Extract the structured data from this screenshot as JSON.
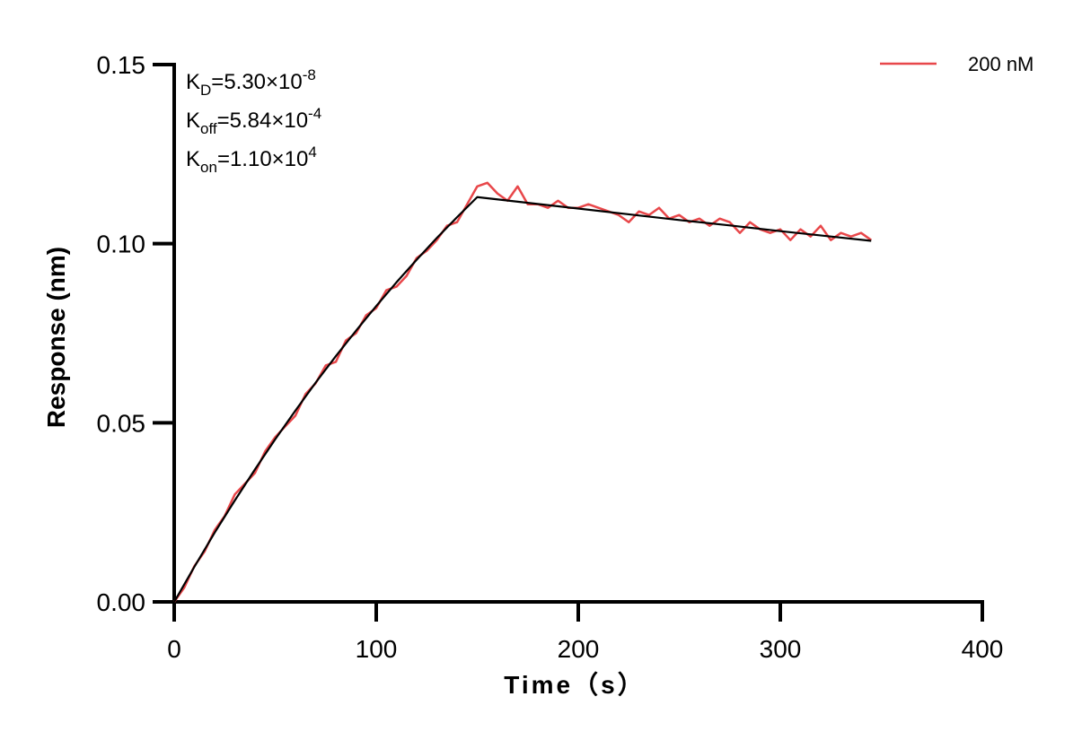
{
  "chart_data": {
    "type": "line",
    "y_label": "Response (nm)",
    "x_label": "Time（s）",
    "annotations": [
      {
        "base": "K",
        "sub": "D",
        "text": "=5.30×10",
        "sup": "-8"
      },
      {
        "base": "K",
        "sub": "off",
        "text": "=5.84×10",
        "sup": "-4"
      },
      {
        "base": "K",
        "sub": "on",
        "text": "=1.10×10",
        "sup": "4"
      }
    ],
    "xlim": [
      0,
      400
    ],
    "xticks": [
      0,
      100,
      200,
      300,
      400
    ],
    "ylim": [
      0,
      0.15
    ],
    "yticks": [
      {
        "value": 0,
        "label": "0.00"
      },
      {
        "value": 0.05,
        "label": "0.05"
      },
      {
        "value": 0.1,
        "label": "0.10"
      },
      {
        "value": 0.15,
        "label": "0.15"
      }
    ],
    "grid": false,
    "legend": "top-right",
    "series": [
      {
        "name": "200 nM",
        "color": "#e8474a",
        "x": [
          0,
          5,
          10,
          15,
          20,
          25,
          30,
          35,
          40,
          45,
          50,
          55,
          60,
          65,
          70,
          75,
          80,
          85,
          90,
          95,
          100,
          105,
          110,
          115,
          120,
          125,
          130,
          135,
          140,
          145,
          150,
          155,
          160,
          165,
          170,
          175,
          180,
          185,
          190,
          195,
          200,
          205,
          210,
          215,
          220,
          225,
          230,
          235,
          240,
          245,
          250,
          255,
          260,
          265,
          270,
          275,
          280,
          285,
          290,
          295,
          300,
          305,
          310,
          315,
          320,
          325,
          330,
          335,
          340,
          345
        ],
        "values": [
          0.0,
          0.004,
          0.01,
          0.014,
          0.02,
          0.024,
          0.03,
          0.033,
          0.036,
          0.042,
          0.046,
          0.049,
          0.052,
          0.058,
          0.061,
          0.066,
          0.067,
          0.073,
          0.075,
          0.08,
          0.082,
          0.087,
          0.088,
          0.091,
          0.096,
          0.098,
          0.101,
          0.105,
          0.106,
          0.111,
          0.116,
          0.117,
          0.114,
          0.112,
          0.116,
          0.111,
          0.111,
          0.11,
          0.112,
          0.11,
          0.11,
          0.111,
          0.11,
          0.109,
          0.108,
          0.106,
          0.109,
          0.108,
          0.11,
          0.107,
          0.108,
          0.106,
          0.107,
          0.105,
          0.107,
          0.106,
          0.103,
          0.106,
          0.104,
          0.103,
          0.104,
          0.101,
          0.104,
          0.102,
          0.105,
          0.101,
          0.103,
          0.102,
          0.103,
          0.101
        ]
      },
      {
        "color": "#000000",
        "x": [
          0,
          10,
          20,
          30,
          40,
          50,
          60,
          70,
          80,
          90,
          100,
          110,
          120,
          130,
          140,
          150,
          175,
          200,
          225,
          250,
          275,
          300,
          325,
          345
        ],
        "values": [
          0,
          0.0098,
          0.0193,
          0.0283,
          0.037,
          0.0454,
          0.0534,
          0.0612,
          0.0686,
          0.0757,
          0.0826,
          0.0892,
          0.0955,
          0.1016,
          0.1074,
          0.113,
          0.1114,
          0.1098,
          0.1082,
          0.1066,
          0.1051,
          0.1035,
          0.102,
          0.1008
        ]
      }
    ]
  }
}
